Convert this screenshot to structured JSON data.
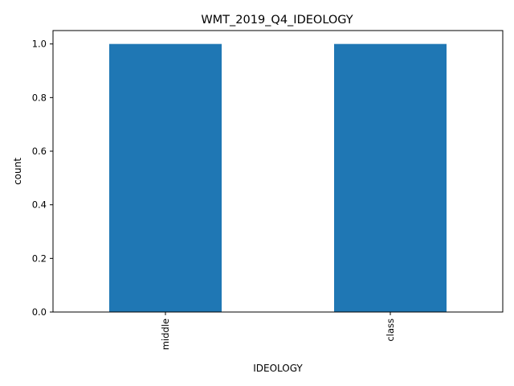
{
  "chart_data": {
    "type": "bar",
    "title": "WMT_2019_Q4_IDEOLOGY",
    "xlabel": "IDEOLOGY",
    "ylabel": "count",
    "categories": [
      "middle",
      "class"
    ],
    "values": [
      1,
      1
    ],
    "ylim": [
      0,
      1.05
    ],
    "yticks": [
      "0.0",
      "0.2",
      "0.4",
      "0.6",
      "0.8",
      "1.0"
    ],
    "bar_color": "#1f77b4",
    "grid": false,
    "legend": false
  }
}
